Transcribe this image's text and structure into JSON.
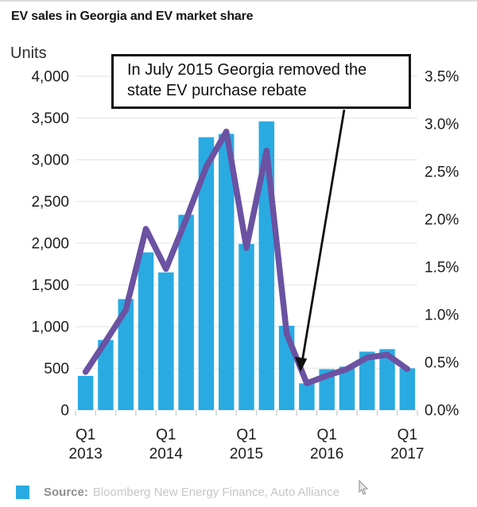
{
  "title": "EV sales in Georgia and EV market share",
  "annotation": {
    "text": "In July 2015 Georgia removed the state EV purchase rebate"
  },
  "footer": {
    "source_label": "Source:",
    "source_text": "Bloomberg New Energy Finance, Auto Alliance"
  },
  "colors": {
    "bar": "#29abe2",
    "line": "#6b52a2",
    "grid": "#ececec",
    "tick": "#ccd6d2",
    "text": "#1c1c1c",
    "annotation": "#101010"
  },
  "chart_data": {
    "type": "bar",
    "combo": true,
    "title": "EV sales in Georgia and EV market share",
    "categories": [
      "Q1 2013",
      "Q2 2013",
      "Q3 2013",
      "Q4 2013",
      "Q1 2014",
      "Q2 2014",
      "Q3 2014",
      "Q4 2014",
      "Q1 2015",
      "Q2 2015",
      "Q3 2015",
      "Q4 2015",
      "Q1 2016",
      "Q2 2016",
      "Q3 2016",
      "Q4 2016",
      "Q1 2017"
    ],
    "series": [
      {
        "name": "EV sales (units)",
        "type": "bar",
        "axis": "left",
        "color": "#29abe2",
        "values": [
          410,
          840,
          1330,
          1890,
          1650,
          2340,
          3270,
          3310,
          1990,
          3460,
          1010,
          320,
          490,
          520,
          700,
          730,
          500
        ]
      },
      {
        "name": "EV market share (%)",
        "type": "line",
        "axis": "right",
        "color": "#6b52a2",
        "values": [
          0.4,
          0.72,
          1.05,
          1.9,
          1.48,
          2.0,
          2.55,
          2.92,
          1.7,
          2.72,
          0.8,
          0.28,
          0.36,
          0.43,
          0.55,
          0.58,
          0.43
        ]
      }
    ],
    "left_axis": {
      "label": "Units",
      "min": 0,
      "max": 4000,
      "tick_values": [
        0,
        500,
        1000,
        1500,
        2000,
        2500,
        3000,
        3500,
        4000
      ],
      "tick_labels": [
        "0",
        "500",
        "1,000",
        "1,500",
        "2,000",
        "2,500",
        "3,000",
        "3,500",
        "4,000"
      ]
    },
    "right_axis": {
      "min": 0,
      "max": 3.5,
      "tick_values": [
        0,
        0.5,
        1,
        1.5,
        2,
        2.5,
        3,
        3.5
      ],
      "tick_labels": [
        "0.0%",
        "0.5%",
        "1.0%",
        "1.5%",
        "2.0%",
        "2.5%",
        "3.0%",
        "3.5%"
      ]
    },
    "x_ticks": [
      {
        "index": 0,
        "top": "Q1",
        "bottom": "2013"
      },
      {
        "index": 4,
        "top": "Q1",
        "bottom": "2014"
      },
      {
        "index": 8,
        "top": "Q1",
        "bottom": "2015"
      },
      {
        "index": 12,
        "top": "Q1",
        "bottom": "2016"
      },
      {
        "index": 16,
        "top": "Q1",
        "bottom": "2017"
      }
    ],
    "grid": true,
    "legend_position": "none",
    "annotations": [
      "In July 2015 Georgia removed the state EV purchase rebate"
    ]
  }
}
